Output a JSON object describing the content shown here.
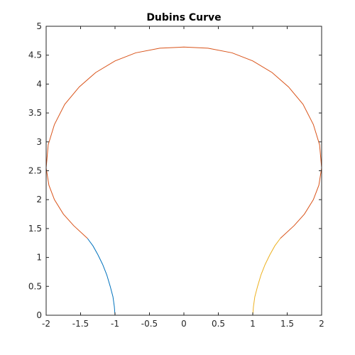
{
  "chart_data": {
    "type": "line",
    "title": "Dubins Curve",
    "xlabel": "",
    "ylabel": "",
    "xlim": [
      -2,
      2
    ],
    "ylim": [
      0,
      5
    ],
    "grid": false,
    "box": true,
    "x_ticks": [
      -2,
      -1.5,
      -1,
      -0.5,
      0,
      0.5,
      1,
      1.5,
      2
    ],
    "x_tick_labels": [
      "-2",
      "-1.5",
      "-1",
      "-0.5",
      "0",
      "0.5",
      "1",
      "1.5",
      "2"
    ],
    "y_ticks": [
      0,
      0.5,
      1,
      1.5,
      2,
      2.5,
      3,
      3.5,
      4,
      4.5,
      5
    ],
    "y_tick_labels": [
      "0",
      "0.5",
      "1",
      "1.5",
      "2",
      "2.5",
      "3",
      "3.5",
      "4",
      "4.5",
      "5"
    ],
    "series": [
      {
        "color": "#0072BD",
        "x": [
          -1.0,
          -1.01,
          -1.03,
          -1.07,
          -1.12,
          -1.18,
          -1.25,
          -1.32,
          -1.4
        ],
        "y": [
          0.0,
          0.15,
          0.32,
          0.5,
          0.7,
          0.88,
          1.05,
          1.2,
          1.33
        ]
      },
      {
        "color": "#D95319",
        "x": [
          -1.4,
          -1.6,
          -1.75,
          -1.88,
          -1.96,
          -2.0,
          -1.97,
          -1.88,
          -1.73,
          -1.52,
          -1.28,
          -1.0,
          -0.7,
          -0.35,
          0.0,
          0.35,
          0.7,
          1.0,
          1.28,
          1.52,
          1.73,
          1.88,
          1.97,
          2.0,
          1.96,
          1.88,
          1.75,
          1.6,
          1.4
        ],
        "y": [
          1.33,
          1.55,
          1.75,
          2.0,
          2.25,
          2.55,
          2.95,
          3.3,
          3.65,
          3.95,
          4.2,
          4.4,
          4.54,
          4.62,
          4.64,
          4.62,
          4.54,
          4.4,
          4.2,
          3.95,
          3.65,
          3.3,
          2.95,
          2.55,
          2.25,
          2.0,
          1.75,
          1.55,
          1.33
        ]
      },
      {
        "color": "#EDB120",
        "x": [
          1.4,
          1.32,
          1.25,
          1.18,
          1.12,
          1.07,
          1.03,
          1.01,
          1.0
        ],
        "y": [
          1.33,
          1.2,
          1.05,
          0.88,
          0.7,
          0.5,
          0.32,
          0.15,
          0.0
        ]
      }
    ]
  }
}
